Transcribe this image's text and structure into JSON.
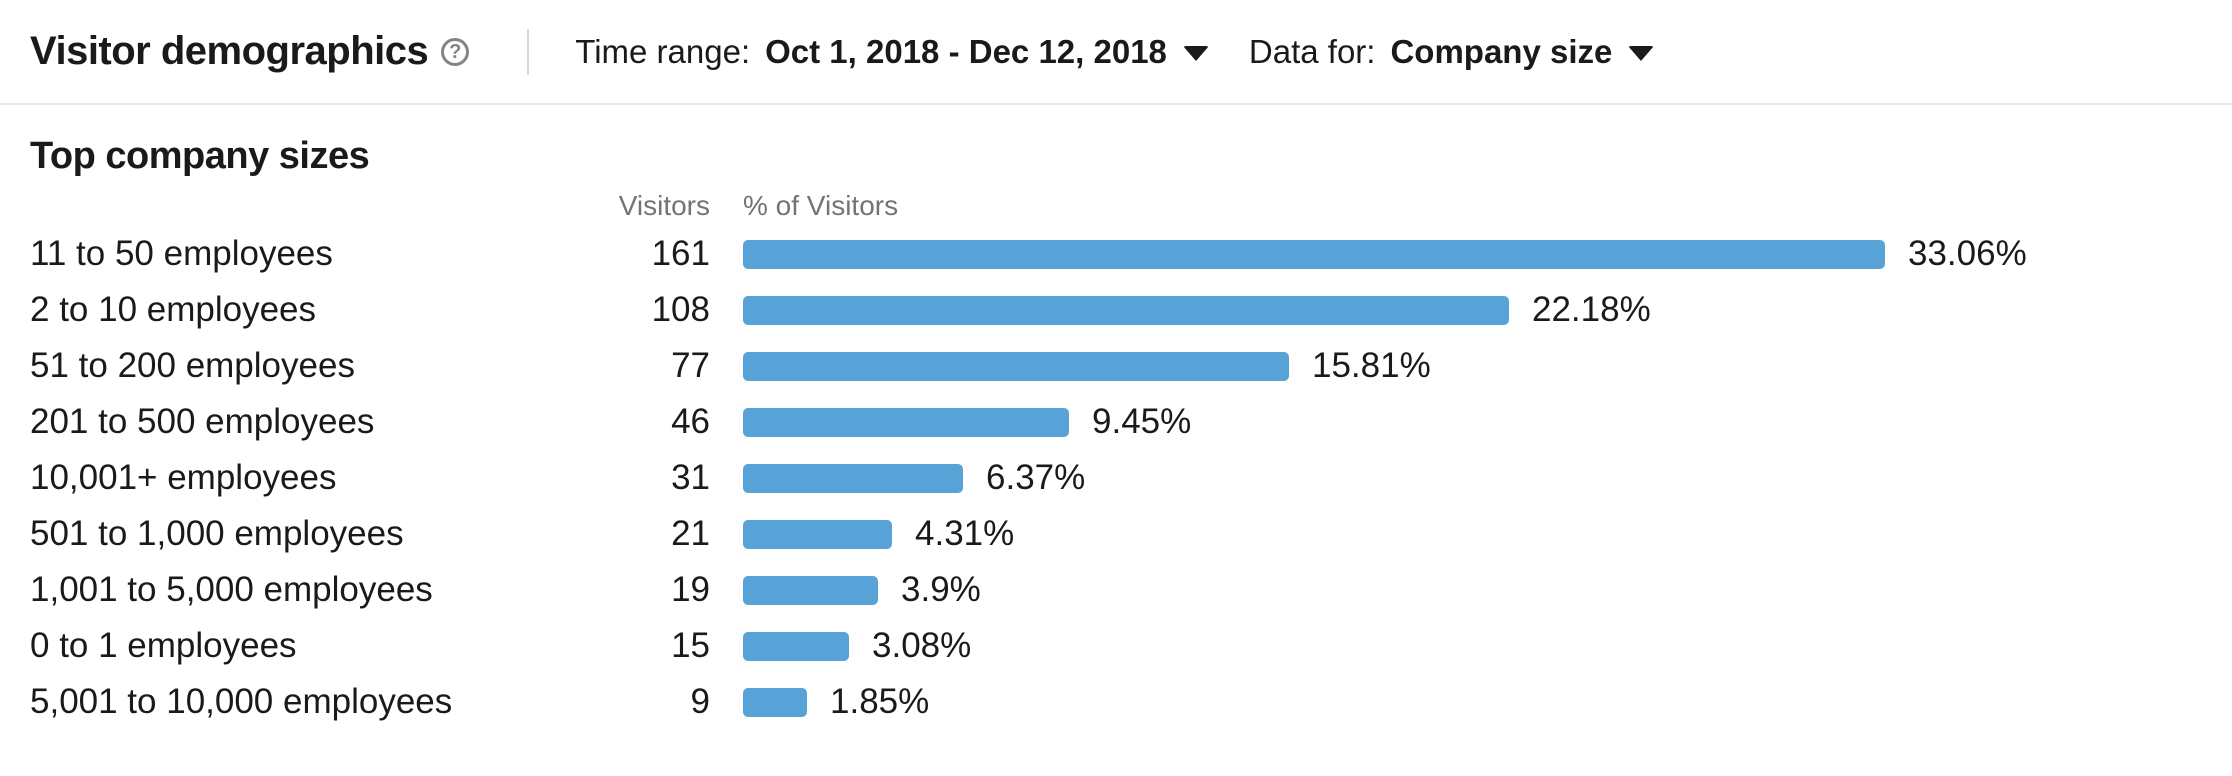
{
  "header": {
    "title": "Visitor demographics",
    "help_icon": "?",
    "time_range": {
      "label": "Time range:",
      "value": "Oct 1, 2018 - Dec 12, 2018"
    },
    "data_for": {
      "label": "Data for:",
      "value": "Company size"
    }
  },
  "section": {
    "title": "Top company sizes",
    "columns": {
      "visitors": "Visitors",
      "pct": "% of Visitors"
    }
  },
  "rows": [
    {
      "label": "11 to 50 employees",
      "visitors": "161",
      "pct_label": "33.06%",
      "pct_value": 33.06
    },
    {
      "label": "2 to 10 employees",
      "visitors": "108",
      "pct_label": "22.18%",
      "pct_value": 22.18
    },
    {
      "label": "51 to 200 employees",
      "visitors": "77",
      "pct_label": "15.81%",
      "pct_value": 15.81
    },
    {
      "label": "201 to 500 employees",
      "visitors": "46",
      "pct_label": "9.45%",
      "pct_value": 9.45
    },
    {
      "label": "10,001+ employees",
      "visitors": "31",
      "pct_label": "6.37%",
      "pct_value": 6.37
    },
    {
      "label": "501 to 1,000 employees",
      "visitors": "21",
      "pct_label": "4.31%",
      "pct_value": 4.31
    },
    {
      "label": "1,001 to 5,000 employees",
      "visitors": "19",
      "pct_label": "3.9%",
      "pct_value": 3.9
    },
    {
      "label": "0 to 1 employees",
      "visitors": "15",
      "pct_label": "3.08%",
      "pct_value": 3.08
    },
    {
      "label": "5,001 to 10,000 employees",
      "visitors": "9",
      "pct_label": "1.85%",
      "pct_value": 1.85
    }
  ],
  "chart_data": {
    "type": "bar",
    "orientation": "horizontal",
    "title": "Top company sizes",
    "categories": [
      "11 to 50 employees",
      "2 to 10 employees",
      "51 to 200 employees",
      "201 to 500 employees",
      "10,001+ employees",
      "501 to 1,000 employees",
      "1,001 to 5,000 employees",
      "0 to 1 employees",
      "5,001 to 10,000 employees"
    ],
    "series": [
      {
        "name": "Visitors",
        "values": [
          161,
          108,
          77,
          46,
          31,
          21,
          19,
          15,
          9
        ]
      },
      {
        "name": "% of Visitors",
        "values": [
          33.06,
          22.18,
          15.81,
          9.45,
          6.37,
          4.31,
          3.9,
          3.08,
          1.85
        ]
      }
    ],
    "data_labels": [
      "33.06%",
      "22.18%",
      "15.81%",
      "9.45%",
      "6.37%",
      "4.31%",
      "3.9%",
      "3.08%",
      "1.85%"
    ],
    "xlabel": "% of Visitors",
    "ylabel": "",
    "xlim": [
      0,
      35
    ],
    "grid": false,
    "legend": "none",
    "bar_color": "#57a3d7"
  },
  "colors": {
    "bar": "#57a3d7",
    "text": "#1a1a1a",
    "muted": "#747474",
    "divider": "#e9e9e9"
  },
  "icons": {
    "help": "question-mark-circle",
    "dropdown": "chevron-down"
  }
}
